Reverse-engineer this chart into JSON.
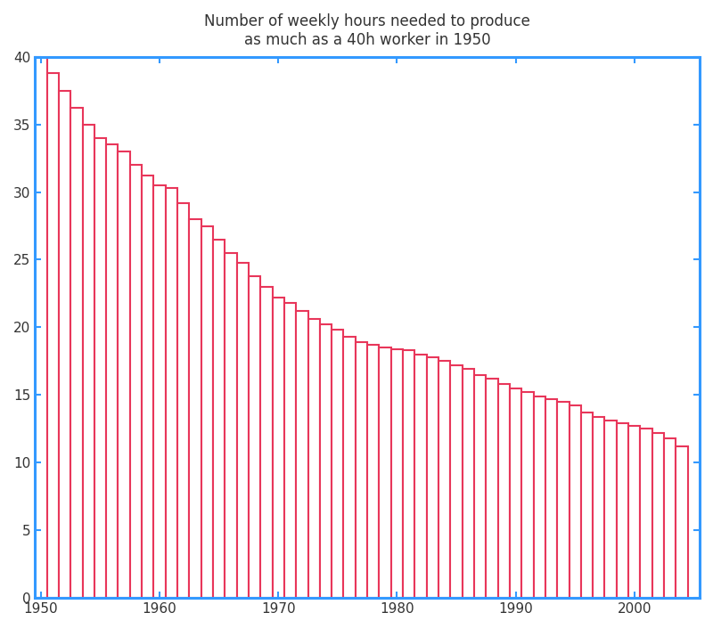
{
  "title": "Number of weekly hours needed to produce\nas much as a 40h worker in 1950",
  "title_fontsize": 12,
  "bar_fill_color": "#FFFFFF",
  "bar_edgecolor": "#E8365A",
  "bar_linewidth": 1.5,
  "axis_color": "#3399FF",
  "background_color": "#FFFFFF",
  "xlim": [
    1949.5,
    2005.5
  ],
  "ylim": [
    0,
    40
  ],
  "yticks": [
    0,
    5,
    10,
    15,
    20,
    25,
    30,
    35,
    40
  ],
  "xticks": [
    1950,
    1960,
    1970,
    1980,
    1990,
    2000
  ],
  "years": [
    1950,
    1951,
    1952,
    1953,
    1954,
    1955,
    1956,
    1957,
    1958,
    1959,
    1960,
    1961,
    1962,
    1963,
    1964,
    1965,
    1966,
    1967,
    1968,
    1969,
    1970,
    1971,
    1972,
    1973,
    1974,
    1975,
    1976,
    1977,
    1978,
    1979,
    1980,
    1981,
    1982,
    1983,
    1984,
    1985,
    1986,
    1987,
    1988,
    1989,
    1990,
    1991,
    1992,
    1993,
    1994,
    1995,
    1996,
    1997,
    1998,
    1999,
    2000,
    2001,
    2002,
    2003,
    2004
  ],
  "values": [
    40.0,
    38.8,
    37.5,
    36.2,
    35.0,
    34.0,
    33.5,
    33.0,
    32.0,
    31.2,
    30.5,
    30.3,
    29.2,
    28.0,
    27.5,
    26.5,
    25.5,
    24.8,
    23.8,
    23.0,
    22.2,
    21.8,
    21.2,
    20.6,
    20.2,
    19.8,
    19.3,
    18.9,
    18.7,
    18.5,
    18.4,
    18.3,
    18.0,
    17.8,
    17.5,
    17.2,
    16.9,
    16.5,
    16.2,
    15.8,
    15.5,
    15.2,
    14.9,
    14.7,
    14.5,
    14.2,
    13.7,
    13.4,
    13.1,
    12.9,
    12.7,
    12.5,
    12.2,
    11.8,
    11.2
  ]
}
